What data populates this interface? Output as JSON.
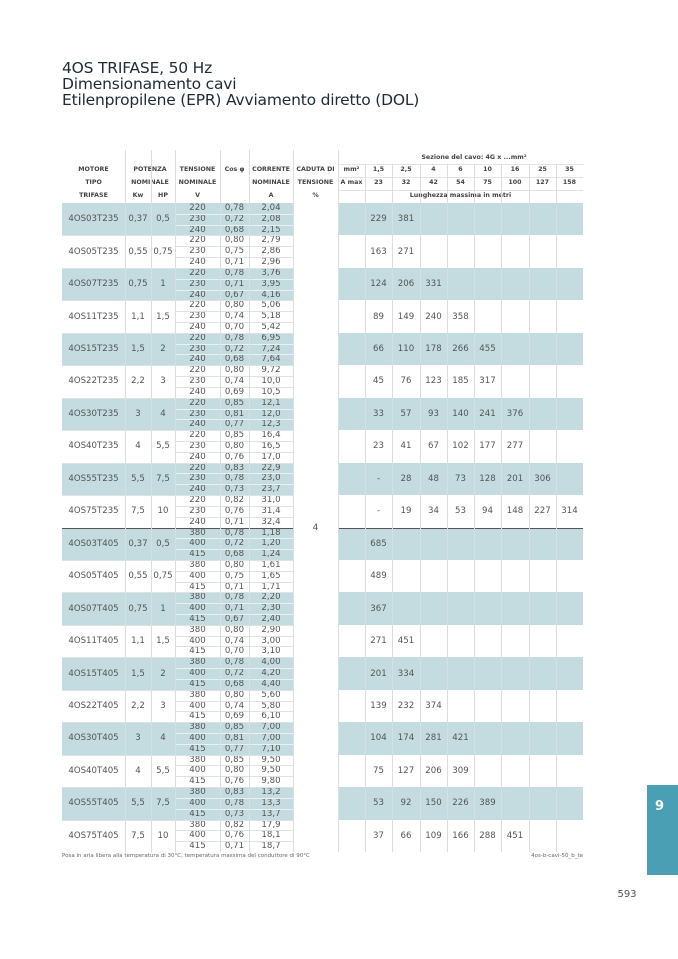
{
  "title": {
    "line1": "4OS TRIFASE, 50 Hz",
    "line2": "Dimensionamento cavi",
    "line3": "Etilenpropilene (EPR) Avviamento diretto (DOL)"
  },
  "header": {
    "section_title": "Sezione del cavo: 4G x ...mm²",
    "motore": [
      "MOTORE",
      "TIPO",
      "TRIFASE"
    ],
    "potenza": [
      "POTENZA",
      "NOMINALE"
    ],
    "kw": "Kw",
    "hp": "HP",
    "tensione": [
      "TENSIONE",
      "NOMINALE",
      "V"
    ],
    "cos": "Cos φ",
    "corrente": [
      "CORRENTE",
      "NOMINALE",
      "A"
    ],
    "caduta": [
      "CADUTA DI",
      "TENSIONE",
      "%"
    ],
    "mm2_label": "mm²",
    "amax_label": "A max",
    "sections": [
      "1,5",
      "2,5",
      "4",
      "6",
      "10",
      "16",
      "25",
      "35"
    ],
    "amax": [
      "23",
      "32",
      "42",
      "54",
      "75",
      "100",
      "127",
      "158"
    ],
    "length_label": "Lunghezza massima in metri"
  },
  "caduta_value": "4",
  "rows": [
    {
      "model": "4OS03T235",
      "kw": "0,37",
      "hp": "0,5",
      "v": [
        "220",
        "230",
        "240"
      ],
      "cos": [
        "0,78",
        "0,72",
        "0,68"
      ],
      "a": [
        "2,04",
        "2,08",
        "2,15"
      ],
      "len": [
        "",
        "229",
        "381",
        "",
        "",
        "",
        "",
        "",
        ""
      ]
    },
    {
      "model": "4OS05T235",
      "kw": "0,55",
      "hp": "0,75",
      "v": [
        "220",
        "230",
        "240"
      ],
      "cos": [
        "0,80",
        "0,75",
        "0,71"
      ],
      "a": [
        "2,79",
        "2,86",
        "2,96"
      ],
      "len": [
        "",
        "163",
        "271",
        "",
        "",
        "",
        "",
        "",
        ""
      ]
    },
    {
      "model": "4OS07T235",
      "kw": "0,75",
      "hp": "1",
      "v": [
        "220",
        "230",
        "240"
      ],
      "cos": [
        "0,78",
        "0,71",
        "0,67"
      ],
      "a": [
        "3,76",
        "3,95",
        "4,16"
      ],
      "len": [
        "",
        "124",
        "206",
        "331",
        "",
        "",
        "",
        "",
        ""
      ]
    },
    {
      "model": "4OS11T235",
      "kw": "1,1",
      "hp": "1,5",
      "v": [
        "220",
        "230",
        "240"
      ],
      "cos": [
        "0,80",
        "0,74",
        "0,70"
      ],
      "a": [
        "5,06",
        "5,18",
        "5,42"
      ],
      "len": [
        "",
        "89",
        "149",
        "240",
        "358",
        "",
        "",
        "",
        ""
      ]
    },
    {
      "model": "4OS15T235",
      "kw": "1,5",
      "hp": "2",
      "v": [
        "220",
        "230",
        "240"
      ],
      "cos": [
        "0,78",
        "0,72",
        "0,68"
      ],
      "a": [
        "6,95",
        "7,24",
        "7,64"
      ],
      "len": [
        "",
        "66",
        "110",
        "178",
        "266",
        "455",
        "",
        "",
        ""
      ]
    },
    {
      "model": "4OS22T235",
      "kw": "2,2",
      "hp": "3",
      "v": [
        "220",
        "230",
        "240"
      ],
      "cos": [
        "0,80",
        "0,74",
        "0,69"
      ],
      "a": [
        "9,72",
        "10,0",
        "10,5"
      ],
      "len": [
        "",
        "45",
        "76",
        "123",
        "185",
        "317",
        "",
        "",
        ""
      ]
    },
    {
      "model": "4OS30T235",
      "kw": "3",
      "hp": "4",
      "v": [
        "220",
        "230",
        "240"
      ],
      "cos": [
        "0,85",
        "0,81",
        "0,77"
      ],
      "a": [
        "12,1",
        "12,0",
        "12,3"
      ],
      "len": [
        "",
        "33",
        "57",
        "93",
        "140",
        "241",
        "376",
        "",
        ""
      ]
    },
    {
      "model": "4OS40T235",
      "kw": "4",
      "hp": "5,5",
      "v": [
        "220",
        "230",
        "240"
      ],
      "cos": [
        "0,85",
        "0,80",
        "0,76"
      ],
      "a": [
        "16,4",
        "16,5",
        "17,0"
      ],
      "len": [
        "",
        "23",
        "41",
        "67",
        "102",
        "177",
        "277",
        "",
        ""
      ]
    },
    {
      "model": "4OS55T235",
      "kw": "5,5",
      "hp": "7,5",
      "v": [
        "220",
        "230",
        "240"
      ],
      "cos": [
        "0,83",
        "0,78",
        "0,73"
      ],
      "a": [
        "22,9",
        "23,0",
        "23,7"
      ],
      "len": [
        "",
        "-",
        "28",
        "48",
        "73",
        "128",
        "201",
        "306",
        ""
      ]
    },
    {
      "model": "4OS75T235",
      "kw": "7,5",
      "hp": "10",
      "v": [
        "220",
        "230",
        "240"
      ],
      "cos": [
        "0,82",
        "0,76",
        "0,71"
      ],
      "a": [
        "31,0",
        "31,4",
        "32,4"
      ],
      "len": [
        "",
        "-",
        "19",
        "34",
        "53",
        "94",
        "148",
        "227",
        "314"
      ]
    },
    {
      "model": "4OS03T405",
      "kw": "0,37",
      "hp": "0,5",
      "v": [
        "380",
        "400",
        "415"
      ],
      "cos": [
        "0,78",
        "0,72",
        "0,68"
      ],
      "a": [
        "1,18",
        "1,20",
        "1,24"
      ],
      "len": [
        "",
        "685",
        "",
        "",
        "",
        "",
        "",
        "",
        ""
      ]
    },
    {
      "model": "4OS05T405",
      "kw": "0,55",
      "hp": "0,75",
      "v": [
        "380",
        "400",
        "415"
      ],
      "cos": [
        "0,80",
        "0,75",
        "0,71"
      ],
      "a": [
        "1,61",
        "1,65",
        "1,71"
      ],
      "len": [
        "",
        "489",
        "",
        "",
        "",
        "",
        "",
        "",
        ""
      ]
    },
    {
      "model": "4OS07T405",
      "kw": "0,75",
      "hp": "1",
      "v": [
        "380",
        "400",
        "415"
      ],
      "cos": [
        "0,78",
        "0,71",
        "0,67"
      ],
      "a": [
        "2,20",
        "2,30",
        "2,40"
      ],
      "len": [
        "",
        "367",
        "",
        "",
        "",
        "",
        "",
        "",
        ""
      ]
    },
    {
      "model": "4OS11T405",
      "kw": "1,1",
      "hp": "1,5",
      "v": [
        "380",
        "400",
        "415"
      ],
      "cos": [
        "0,80",
        "0,74",
        "0,70"
      ],
      "a": [
        "2,90",
        "3,00",
        "3,10"
      ],
      "len": [
        "",
        "271",
        "451",
        "",
        "",
        "",
        "",
        "",
        ""
      ]
    },
    {
      "model": "4OS15T405",
      "kw": "1,5",
      "hp": "2",
      "v": [
        "380",
        "400",
        "415"
      ],
      "cos": [
        "0,78",
        "0,72",
        "0,68"
      ],
      "a": [
        "4,00",
        "4,20",
        "4,40"
      ],
      "len": [
        "",
        "201",
        "334",
        "",
        "",
        "",
        "",
        "",
        ""
      ]
    },
    {
      "model": "4OS22T405",
      "kw": "2,2",
      "hp": "3",
      "v": [
        "380",
        "400",
        "415"
      ],
      "cos": [
        "0,80",
        "0,74",
        "0,69"
      ],
      "a": [
        "5,60",
        "5,80",
        "6,10"
      ],
      "len": [
        "",
        "139",
        "232",
        "374",
        "",
        "",
        "",
        "",
        ""
      ]
    },
    {
      "model": "4OS30T405",
      "kw": "3",
      "hp": "4",
      "v": [
        "380",
        "400",
        "415"
      ],
      "cos": [
        "0,85",
        "0,81",
        "0,77"
      ],
      "a": [
        "7,00",
        "7,00",
        "7,10"
      ],
      "len": [
        "",
        "104",
        "174",
        "281",
        "421",
        "",
        "",
        "",
        ""
      ]
    },
    {
      "model": "4OS40T405",
      "kw": "4",
      "hp": "5,5",
      "v": [
        "380",
        "400",
        "415"
      ],
      "cos": [
        "0,85",
        "0,80",
        "0,76"
      ],
      "a": [
        "9,50",
        "9,50",
        "9,80"
      ],
      "len": [
        "",
        "75",
        "127",
        "206",
        "309",
        "",
        "",
        "",
        ""
      ]
    },
    {
      "model": "4OS55T405",
      "kw": "5,5",
      "hp": "7,5",
      "v": [
        "380",
        "400",
        "415"
      ],
      "cos": [
        "0,83",
        "0,78",
        "0,73"
      ],
      "a": [
        "13,2",
        "13,3",
        "13,7"
      ],
      "len": [
        "",
        "53",
        "92",
        "150",
        "226",
        "389",
        "",
        "",
        ""
      ]
    },
    {
      "model": "4OS75T405",
      "kw": "7,5",
      "hp": "10",
      "v": [
        "380",
        "400",
        "415"
      ],
      "cos": [
        "0,82",
        "0,76",
        "0,71"
      ],
      "a": [
        "17,9",
        "18,1",
        "18,7"
      ],
      "len": [
        "",
        "37",
        "66",
        "109",
        "166",
        "288",
        "451",
        "",
        ""
      ]
    }
  ],
  "footnote": "Posa in aria libera alla temperatura di 30°C, temperatura massima del conduttore di 90°C",
  "code": "4os-b-cavi-50_b_te",
  "chapter_tab": "9",
  "page_number": "593",
  "colors": {
    "shade": "#c4dcdf",
    "tab": "#4a9fb5"
  }
}
